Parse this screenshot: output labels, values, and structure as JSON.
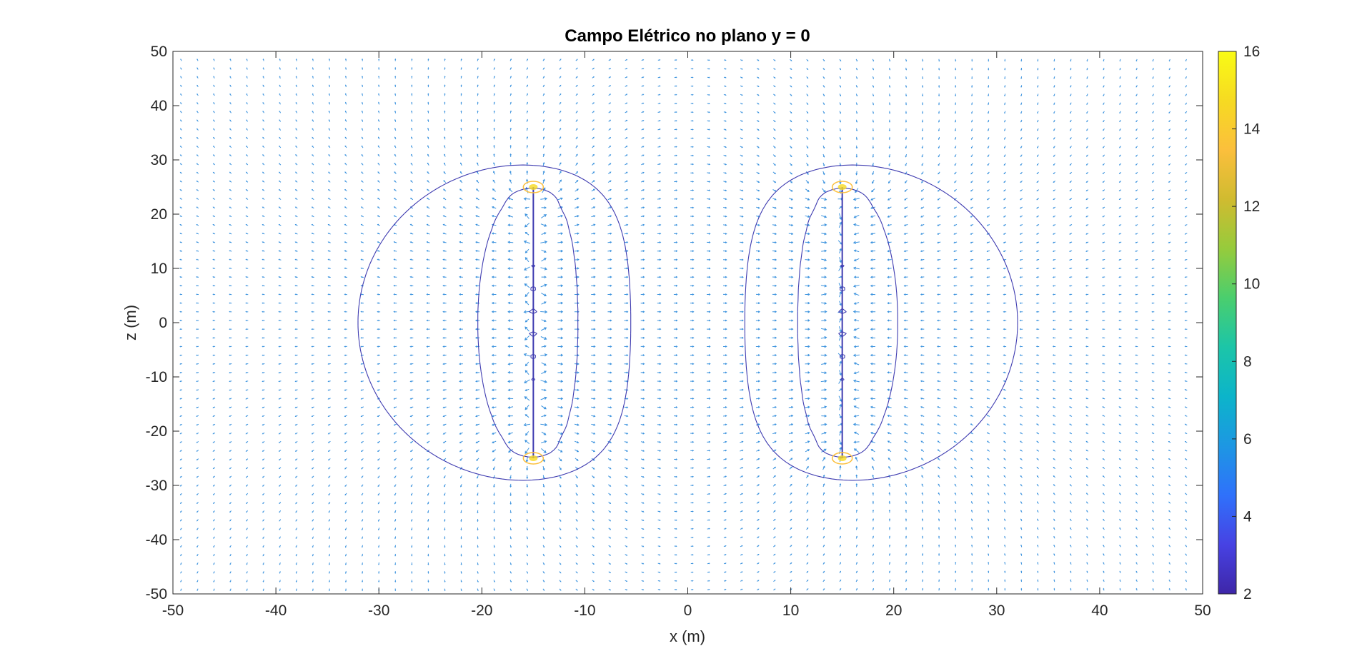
{
  "chart_data": {
    "type": "quiver",
    "title": "Campo Elétrico no plano y = 0",
    "xlabel": "x (m)",
    "ylabel": "z (m)",
    "xlim": [
      -50,
      50
    ],
    "ylim": [
      -50,
      50
    ],
    "xticks": [
      -50,
      -40,
      -30,
      -20,
      -10,
      0,
      10,
      20,
      30,
      40,
      50
    ],
    "yticks": [
      -50,
      -40,
      -30,
      -20,
      -10,
      0,
      10,
      20,
      30,
      40,
      50
    ],
    "grid": false,
    "colorbar": {
      "position": "right",
      "colormap": "parula",
      "range": [
        2,
        16
      ],
      "ticks": [
        2,
        4,
        6,
        8,
        10,
        12,
        14,
        16
      ],
      "colors": [
        "#3e26a8",
        "#4742e3",
        "#2f71fb",
        "#1d97e3",
        "#0cb4ca",
        "#1cc5a8",
        "#4ace6e",
        "#96cb3c",
        "#d0bb30",
        "#fbbf3c",
        "#f6da22",
        "#f9fb15"
      ]
    },
    "rods": [
      {
        "x": -15,
        "z_min": -25,
        "z_max": 25
      },
      {
        "x": 15,
        "z_min": -25,
        "z_max": 25
      }
    ],
    "vector_color": "#1a80d8",
    "contour_color": "#3e3bb0"
  }
}
